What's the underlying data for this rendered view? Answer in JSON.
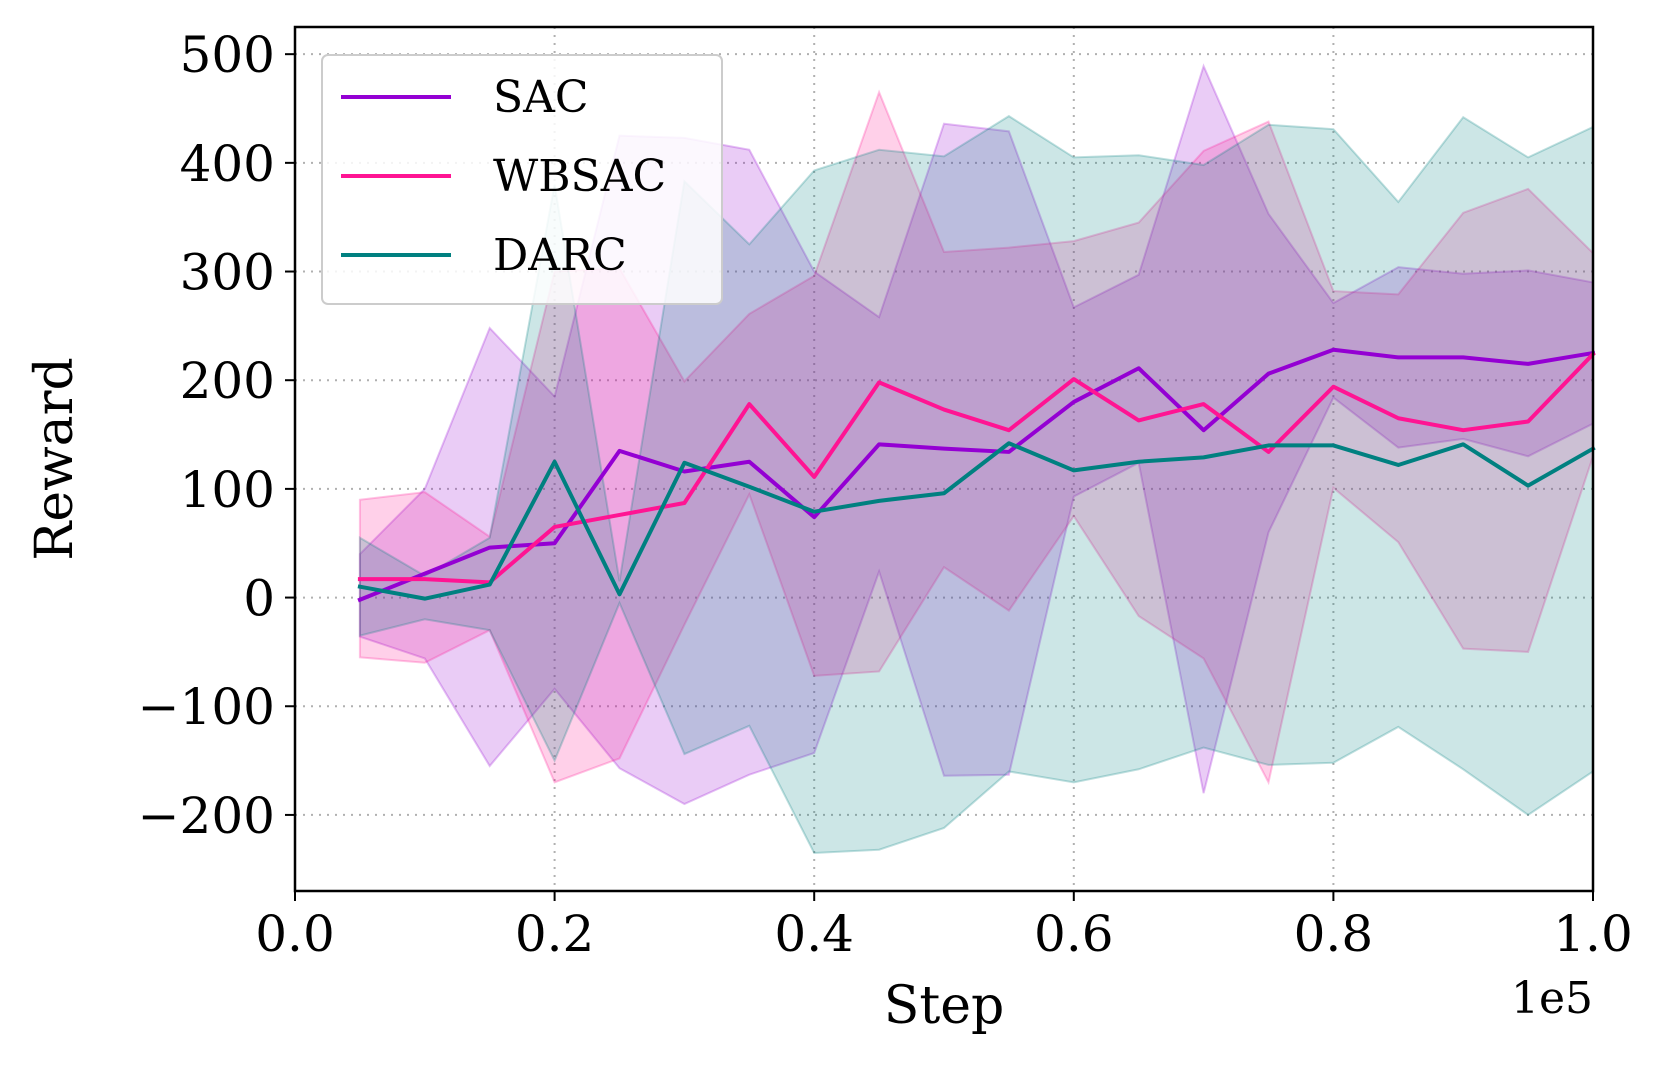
{
  "chart_data": {
    "type": "line",
    "title": "",
    "xlabel": "Step",
    "ylabel": "Reward",
    "x_offset_label": "1e5",
    "xlim": [
      0,
      100000
    ],
    "ylim": [
      -270,
      525
    ],
    "x_ticks": [
      0,
      20000,
      40000,
      60000,
      80000,
      100000
    ],
    "x_tick_labels": [
      "0.0",
      "0.2",
      "0.4",
      "0.6",
      "0.8",
      "1.0"
    ],
    "y_ticks": [
      -200,
      -100,
      0,
      100,
      200,
      300,
      400,
      500
    ],
    "y_tick_labels": [
      "−200",
      "−100",
      "0",
      "100",
      "200",
      "300",
      "400",
      "500"
    ],
    "grid": true,
    "legend_position": "top-left",
    "x": [
      5000,
      10000,
      15000,
      20000,
      25000,
      30000,
      35000,
      40000,
      45000,
      50000,
      55000,
      60000,
      65000,
      70000,
      75000,
      80000,
      85000,
      90000,
      95000,
      100000
    ],
    "series": [
      {
        "name": "SAC",
        "color": "#9400D3",
        "values": [
          -2,
          22,
          46,
          50,
          135,
          116,
          125,
          74,
          141,
          137,
          134,
          180,
          211,
          154,
          206,
          228,
          221,
          221,
          215,
          225
        ],
        "upper": [
          40,
          100,
          248,
          185,
          425,
          423,
          412,
          300,
          258,
          436,
          429,
          267,
          297,
          489,
          353,
          271,
          304,
          298,
          301,
          290
        ],
        "lower": [
          -36,
          -56,
          -155,
          -84,
          -157,
          -190,
          -163,
          -143,
          24,
          -164,
          -163,
          93,
          124,
          -180,
          60,
          184,
          138,
          146,
          130,
          160
        ]
      },
      {
        "name": "WBSAC",
        "color": "#FF1493",
        "values": [
          17,
          17,
          14,
          65,
          76,
          87,
          178,
          111,
          198,
          173,
          154,
          201,
          163,
          178,
          134,
          194,
          165,
          154,
          162,
          224
        ],
        "upper": [
          90,
          97,
          56,
          300,
          303,
          199,
          261,
          296,
          465,
          318,
          322,
          328,
          345,
          411,
          438,
          282,
          279,
          354,
          376,
          317
        ],
        "lower": [
          -55,
          -60,
          -30,
          -170,
          -148,
          -25,
          95,
          -72,
          -68,
          28,
          -12,
          75,
          -17,
          -56,
          -170,
          101,
          51,
          -47,
          -50,
          130
        ]
      },
      {
        "name": "DARC",
        "color": "#008080",
        "values": [
          10,
          -1,
          12,
          125,
          3,
          124,
          102,
          79,
          89,
          96,
          142,
          117,
          125,
          129,
          140,
          140,
          122,
          141,
          103,
          137
        ],
        "upper": [
          55,
          20,
          55,
          380,
          15,
          383,
          325,
          393,
          412,
          406,
          443,
          405,
          407,
          398,
          435,
          431,
          364,
          442,
          405,
          433
        ],
        "lower": [
          -35,
          -20,
          -30,
          -150,
          -5,
          -144,
          -118,
          -235,
          -232,
          -212,
          -160,
          -170,
          -158,
          -138,
          -154,
          -152,
          -119,
          -158,
          -200,
          -160
        ]
      }
    ]
  }
}
